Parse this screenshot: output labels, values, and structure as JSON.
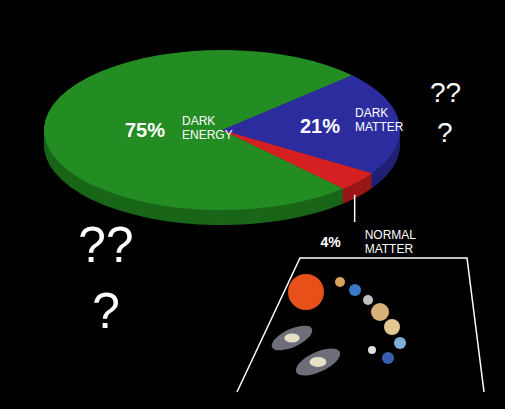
{
  "chart_data": {
    "type": "pie",
    "categories": [
      "DARK ENERGY",
      "DARK MATTER",
      "NORMAL MATTER"
    ],
    "values": [
      75,
      21,
      4
    ],
    "value_labels": [
      "75%",
      "21%",
      "4%"
    ],
    "colors": [
      "#238c23",
      "#2c2c9e",
      "#d42020"
    ],
    "data_labels": true,
    "annotations": [
      "??",
      "?",
      "??",
      "?"
    ]
  }
}
